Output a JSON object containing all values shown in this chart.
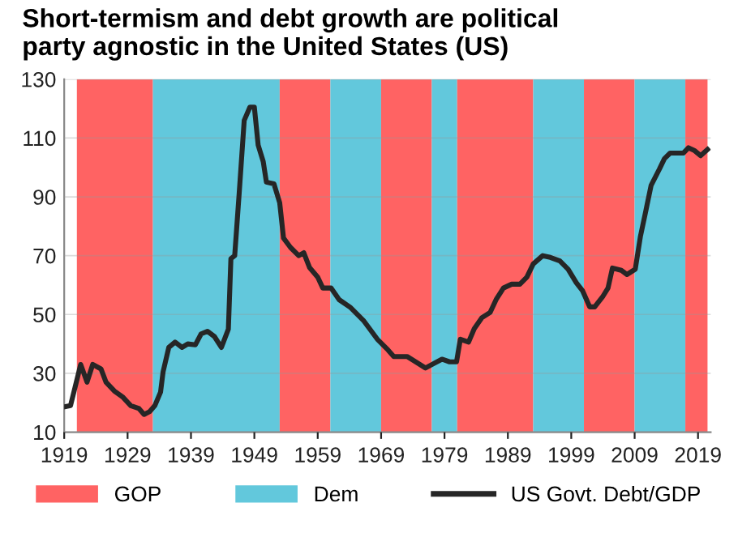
{
  "chart_data": {
    "type": "line",
    "title": "Short-termism and debt growth are political\nparty agnostic in the United States (US)",
    "xlim": [
      1919,
      2021
    ],
    "xticks": [
      1919,
      1929,
      1939,
      1949,
      1959,
      1969,
      1979,
      1989,
      1999,
      2009,
      2019
    ],
    "ylim": [
      10,
      130
    ],
    "yticks": [
      10,
      30,
      50,
      70,
      90,
      110,
      130
    ],
    "grid": "y",
    "legend": "bottom",
    "line_style": "solid",
    "marker": "none",
    "bands": [
      {
        "axis": "x",
        "from": 1921,
        "to": 1933,
        "label": "GOP",
        "color": "#ff6363"
      },
      {
        "axis": "x",
        "from": 1933,
        "to": 1953,
        "label": "Dem",
        "color": "#62c8dc"
      },
      {
        "axis": "x",
        "from": 1953,
        "to": 1961,
        "color": "#ff6363"
      },
      {
        "axis": "x",
        "from": 1961,
        "to": 1969,
        "color": "#62c8dc"
      },
      {
        "axis": "x",
        "from": 1969,
        "to": 1977,
        "color": "#ff6363"
      },
      {
        "axis": "x",
        "from": 1977,
        "to": 1981,
        "color": "#62c8dc"
      },
      {
        "axis": "x",
        "from": 1981,
        "to": 1993,
        "color": "#ff6363"
      },
      {
        "axis": "x",
        "from": 1993,
        "to": 2001,
        "color": "#62c8dc"
      },
      {
        "axis": "x",
        "from": 2001,
        "to": 2009,
        "color": "#ff6363"
      },
      {
        "axis": "x",
        "from": 2009,
        "to": 2017,
        "color": "#62c8dc"
      },
      {
        "axis": "x",
        "from": 2017,
        "to": 2020.5,
        "color": "#ff6363"
      }
    ],
    "series": [
      {
        "name": "US Govt. Debt/GDP",
        "color": "#262626",
        "x": [
          1919,
          1920,
          1921.6,
          1922.6,
          1923.5,
          1924.8,
          1925.6,
          1926.9,
          1928.2,
          1929.5,
          1930.8,
          1931.6,
          1932.5,
          1933.3,
          1934.2,
          1934.6,
          1935.5,
          1936.5,
          1937.6,
          1938.5,
          1939.7,
          1940.6,
          1941.6,
          1942.7,
          1943.8,
          1944.9,
          1945.3,
          1945.9,
          1946.6,
          1947.4,
          1948.3,
          1949,
          1949.6,
          1950.4,
          1950.9,
          1952.1,
          1953,
          1953.6,
          1954.7,
          1956,
          1956.8,
          1957.7,
          1959,
          1959.8,
          1961.1,
          1962.4,
          1964.1,
          1966.2,
          1968.4,
          1970.1,
          1971,
          1973.1,
          1976,
          1977.3,
          1978.6,
          1979.8,
          1980.9,
          1981.5,
          1982.8,
          1983.7,
          1984.9,
          1986.2,
          1987.2,
          1988.3,
          1989.6,
          1990.9,
          1992,
          1993,
          1994.5,
          1995.7,
          1997.2,
          1998.5,
          1999.8,
          2000.8,
          2001.9,
          2002.7,
          2004,
          2004.8,
          2005.5,
          2006.9,
          2007.8,
          2009.1,
          2009.9,
          2010.8,
          2011.6,
          2012.9,
          2013.7,
          2014.6,
          2016.7,
          2017.5,
          2018.4,
          2019.4,
          2020.5
        ],
        "values": [
          18.6,
          19,
          33,
          27,
          33,
          31.5,
          27,
          24,
          22,
          19,
          18,
          16,
          17,
          19,
          23.6,
          30.5,
          38.8,
          40.6,
          38.8,
          40,
          39.7,
          43.4,
          44.3,
          42.5,
          38.8,
          45,
          69,
          70,
          91,
          116,
          120.5,
          120.5,
          107.6,
          102,
          95,
          94.4,
          88,
          76,
          72.8,
          70,
          71,
          66,
          62.7,
          59,
          59,
          55,
          52.5,
          48,
          41.6,
          37.9,
          35.7,
          35.7,
          31.8,
          33.3,
          34.8,
          33.9,
          33.9,
          41.6,
          40.6,
          45.2,
          48.9,
          50.7,
          55.3,
          59,
          60.3,
          60.3,
          62.7,
          67.2,
          70,
          69.4,
          68.2,
          65.4,
          60.8,
          58,
          52.6,
          52.6,
          56.2,
          59,
          65.8,
          65,
          63.6,
          65.4,
          76.4,
          85.6,
          93.9,
          99.4,
          103,
          104.9,
          104.9,
          106.7,
          105.8,
          104,
          106.1
        ]
      }
    ]
  }
}
